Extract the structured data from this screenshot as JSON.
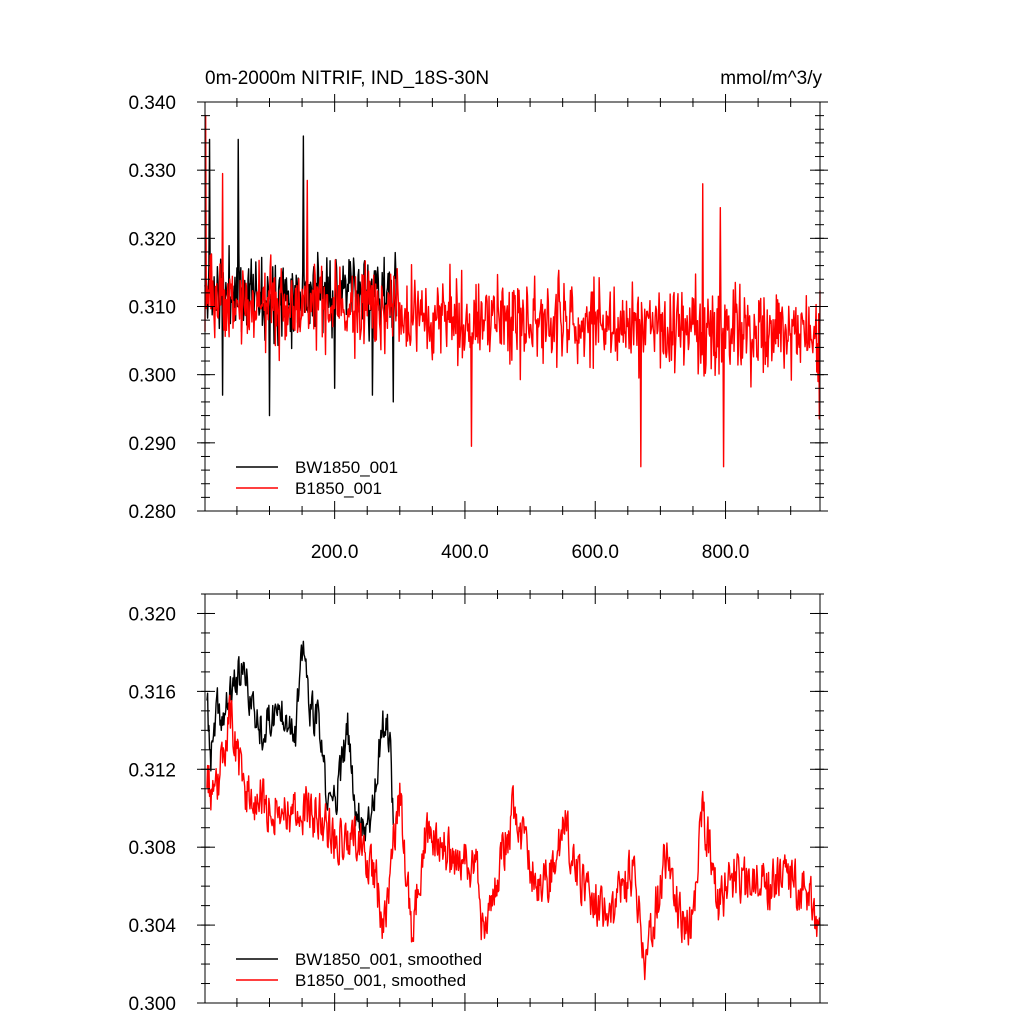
{
  "chart_data": [
    {
      "type": "line",
      "title": "0m-2000m NITRIF, IND_18S-30N",
      "units": "mmol/m^3/y",
      "xlabel": "",
      "ylabel": "",
      "xlim": [
        1,
        945
      ],
      "ylim": [
        0.28,
        0.34
      ],
      "xticks": [
        200,
        400,
        600,
        800
      ],
      "xtick_labels": [
        "200.0",
        "400.0",
        "600.0",
        "800.0"
      ],
      "yticks": [
        0.28,
        0.29,
        0.3,
        0.31,
        0.32,
        0.33,
        0.34
      ],
      "ytick_labels": [
        "0.280",
        "0.290",
        "0.300",
        "0.310",
        "0.320",
        "0.330",
        "0.340"
      ],
      "legend_position": "bottom-left",
      "grid": false,
      "series": [
        {
          "name": "BW1850_001",
          "color": "#000000",
          "x_range": [
            1,
            295
          ],
          "mean": 0.312,
          "noise": 0.006,
          "seed": 11,
          "extremes": [
            [
              8,
              0.3345
            ],
            [
              28,
              0.297
            ],
            [
              52,
              0.3345
            ],
            [
              100,
              0.294
            ],
            [
              152,
              0.335
            ],
            [
              200,
              0.298
            ],
            [
              258,
              0.297
            ],
            [
              290,
              0.296
            ]
          ]
        },
        {
          "name": "B1850_001",
          "color": "#ff0000",
          "x_range": [
            1,
            945
          ],
          "mean_start": 0.311,
          "mean_end": 0.3055,
          "noise": 0.0065,
          "seed": 23,
          "extremes": [
            [
              2,
              0.338
            ],
            [
              28,
              0.3295
            ],
            [
              158,
              0.3285
            ],
            [
              410,
              0.2895
            ],
            [
              670,
              0.2865
            ],
            [
              765,
              0.328
            ],
            [
              792,
              0.3245
            ],
            [
              797,
              0.2865
            ],
            [
              944,
              0.2935
            ]
          ]
        }
      ]
    },
    {
      "type": "line",
      "title": "",
      "xlabel": "",
      "ylabel": "",
      "xlim": [
        1,
        945
      ],
      "ylim": [
        0.3,
        0.321
      ],
      "xticks": [
        200,
        400,
        600,
        800
      ],
      "yticks": [
        0.3,
        0.304,
        0.308,
        0.312,
        0.316,
        0.32
      ],
      "ytick_labels": [
        "0.300",
        "0.304",
        "0.308",
        "0.312",
        "0.316",
        "0.320"
      ],
      "legend_position": "bottom-left",
      "grid": false,
      "series": [
        {
          "name": "BW1850_001, smoothed",
          "color": "#000000",
          "x_range": [
            4,
            290
          ],
          "seed": 37,
          "noise": 0.0009,
          "anchors": [
            [
              4,
              0.3155
            ],
            [
              10,
              0.3125
            ],
            [
              20,
              0.315
            ],
            [
              30,
              0.3145
            ],
            [
              45,
              0.3165
            ],
            [
              60,
              0.317
            ],
            [
              75,
              0.315
            ],
            [
              90,
              0.314
            ],
            [
              110,
              0.315
            ],
            [
              125,
              0.315
            ],
            [
              140,
              0.314
            ],
            [
              152,
              0.3185
            ],
            [
              162,
              0.315
            ],
            [
              175,
              0.3145
            ],
            [
              190,
              0.31
            ],
            [
              205,
              0.311
            ],
            [
              220,
              0.314
            ],
            [
              232,
              0.31
            ],
            [
              240,
              0.3095
            ],
            [
              250,
              0.309
            ],
            [
              262,
              0.311
            ],
            [
              272,
              0.314
            ],
            [
              280,
              0.3145
            ],
            [
              286,
              0.313
            ],
            [
              290,
              0.309
            ]
          ]
        },
        {
          "name": "B1850_001, smoothed",
          "color": "#ff0000",
          "x_range": [
            4,
            945
          ],
          "seed": 53,
          "noise": 0.0011,
          "anchors": [
            [
              4,
              0.312
            ],
            [
              15,
              0.31
            ],
            [
              35,
              0.314
            ],
            [
              38,
              0.315
            ],
            [
              60,
              0.311
            ],
            [
              100,
              0.31
            ],
            [
              140,
              0.31
            ],
            [
              180,
              0.3095
            ],
            [
              200,
              0.3085
            ],
            [
              240,
              0.3085
            ],
            [
              265,
              0.306
            ],
            [
              275,
              0.304
            ],
            [
              290,
              0.308
            ],
            [
              300,
              0.3105
            ],
            [
              318,
              0.3035
            ],
            [
              340,
              0.3085
            ],
            [
              380,
              0.3075
            ],
            [
              420,
              0.307
            ],
            [
              425,
              0.303
            ],
            [
              440,
              0.3055
            ],
            [
              460,
              0.308
            ],
            [
              475,
              0.31
            ],
            [
              500,
              0.307
            ],
            [
              520,
              0.306
            ],
            [
              540,
              0.307
            ],
            [
              550,
              0.3095
            ],
            [
              580,
              0.306
            ],
            [
              600,
              0.3055
            ],
            [
              620,
              0.304
            ],
            [
              640,
              0.306
            ],
            [
              660,
              0.307
            ],
            [
              675,
              0.302
            ],
            [
              700,
              0.306
            ],
            [
              710,
              0.308
            ],
            [
              730,
              0.3045
            ],
            [
              750,
              0.304
            ],
            [
              765,
              0.31
            ],
            [
              790,
              0.305
            ],
            [
              810,
              0.3065
            ],
            [
              840,
              0.306
            ],
            [
              860,
              0.306
            ],
            [
              890,
              0.3065
            ],
            [
              930,
              0.3055
            ],
            [
              945,
              0.303
            ]
          ]
        }
      ]
    }
  ]
}
